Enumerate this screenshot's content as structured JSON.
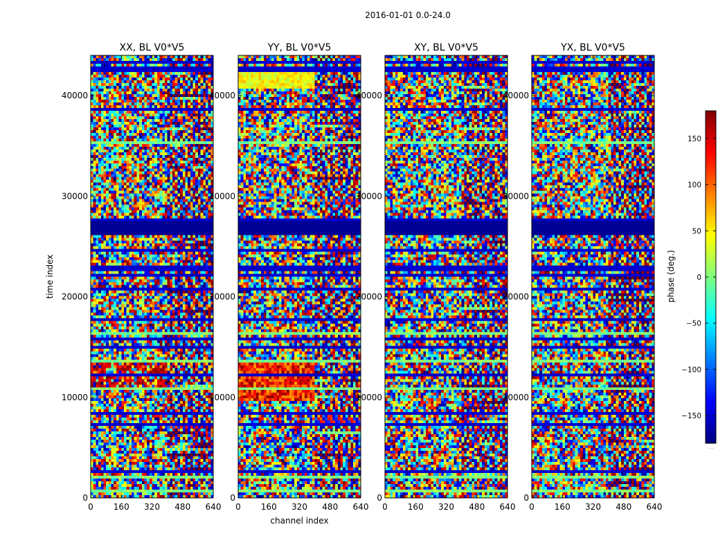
{
  "chart_data": {
    "type": "heatmap",
    "suptitle": "2016-01-01 0.0-24.0",
    "xlabel": "channel index",
    "ylabel": "time index",
    "xlim": [
      0,
      640
    ],
    "ylim": [
      0,
      44000
    ],
    "xticks": [
      0,
      160,
      320,
      480,
      640
    ],
    "yticks": [
      0,
      10000,
      20000,
      30000,
      40000
    ],
    "xtick_labels": [
      "0",
      "160",
      "320",
      "480",
      "640"
    ],
    "ytick_labels": [
      "0",
      "10000",
      "20000",
      "30000",
      "40000"
    ],
    "panels": [
      {
        "title": "XX, BL V0*V5",
        "show_ylabel": true,
        "show_xlabel": false,
        "seed": 11
      },
      {
        "title": "YY, BL V0*V5",
        "show_ylabel": false,
        "show_xlabel": true,
        "seed": 23
      },
      {
        "title": "XY, BL V0*V5",
        "show_ylabel": false,
        "show_xlabel": false,
        "seed": 37
      },
      {
        "title": "YX, BL V0*V5",
        "show_ylabel": false,
        "show_xlabel": false,
        "seed": 53
      }
    ],
    "colorbar": {
      "label": "phase (deg.)",
      "range": [
        -180,
        180
      ],
      "ticks": [
        -150,
        -100,
        -50,
        0,
        50,
        100,
        150
      ],
      "tick_labels": [
        "−150",
        "−100",
        "−50",
        "0",
        "50",
        "100",
        "150"
      ],
      "colormap": "jet",
      "footnote": "....."
    },
    "flagged_time_band": [
      26100,
      27500
    ]
  }
}
